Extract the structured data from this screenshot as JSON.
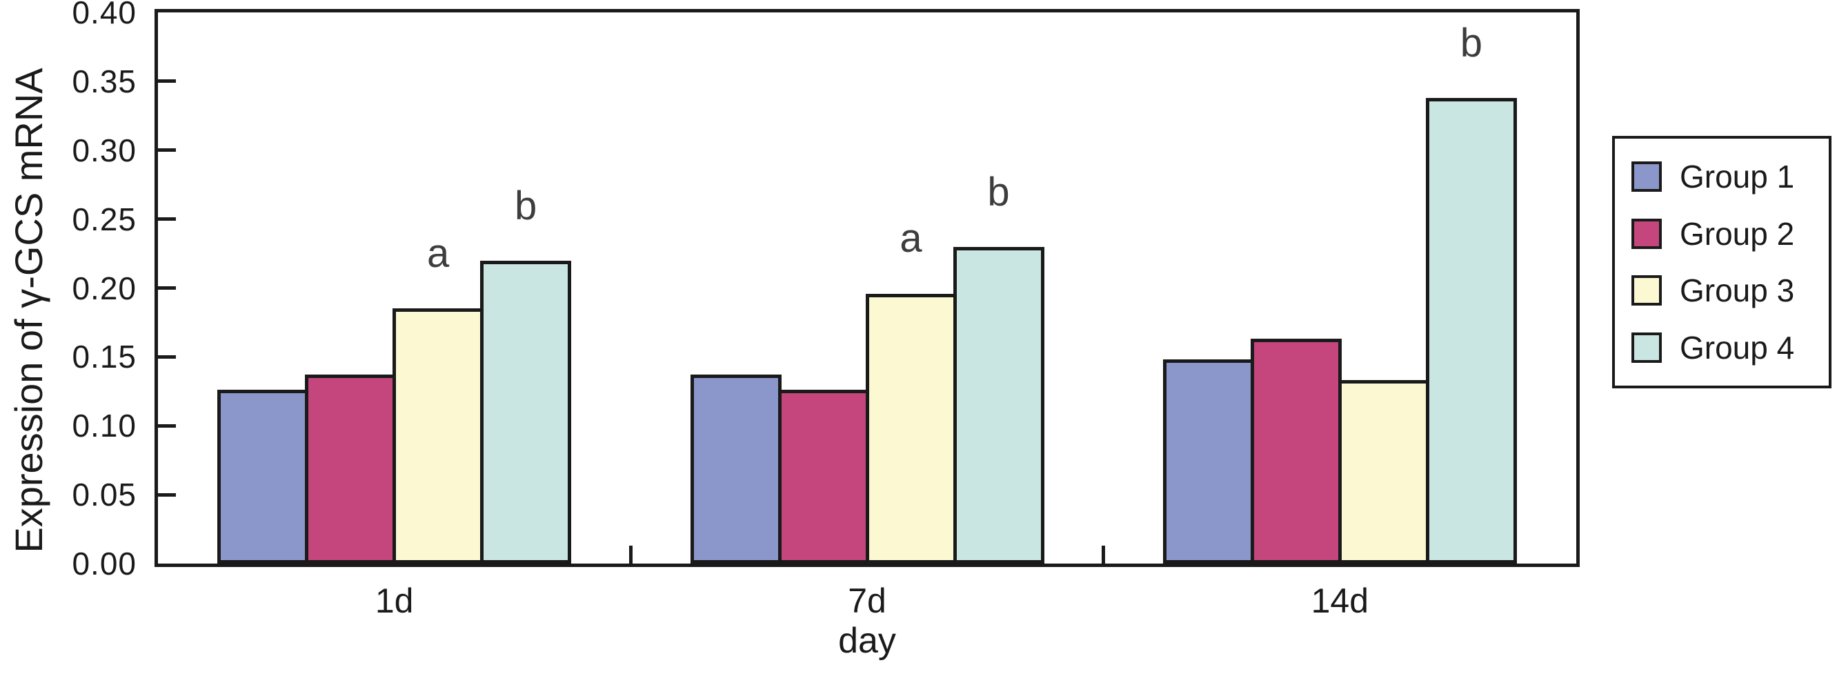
{
  "chart_data": {
    "type": "bar",
    "title": "",
    "xlabel": "day",
    "ylabel": "Expression of γ-GCS mRNA",
    "categories": [
      "1d",
      "7d",
      "14d"
    ],
    "series": [
      {
        "name": "Group 1",
        "color": "#8b97cb",
        "values": [
          0.126,
          0.137,
          0.148
        ]
      },
      {
        "name": "Group 2",
        "color": "#c4467c",
        "values": [
          0.137,
          0.126,
          0.163
        ]
      },
      {
        "name": "Group 3",
        "color": "#fbf8d2",
        "values": [
          0.185,
          0.196,
          0.133
        ]
      },
      {
        "name": "Group 4",
        "color": "#c9e6e2",
        "values": [
          0.22,
          0.23,
          0.338
        ]
      }
    ],
    "ylim": [
      0.0,
      0.4
    ],
    "y_ticks": [
      "0.00",
      "0.05",
      "0.10",
      "0.15",
      "0.20",
      "0.25",
      "0.30",
      "0.35",
      "0.40"
    ],
    "annotations": [
      {
        "category": "1d",
        "series": "Group 3",
        "text": "a"
      },
      {
        "category": "1d",
        "series": "Group 4",
        "text": "b"
      },
      {
        "category": "7d",
        "series": "Group 3",
        "text": "a"
      },
      {
        "category": "7d",
        "series": "Group 4",
        "text": "b"
      },
      {
        "category": "14d",
        "series": "Group 4",
        "text": "b"
      }
    ],
    "legend_position": "right",
    "grid": false,
    "axis_color": "#1a1a1a",
    "annotation_color": "#3d3d3d"
  }
}
